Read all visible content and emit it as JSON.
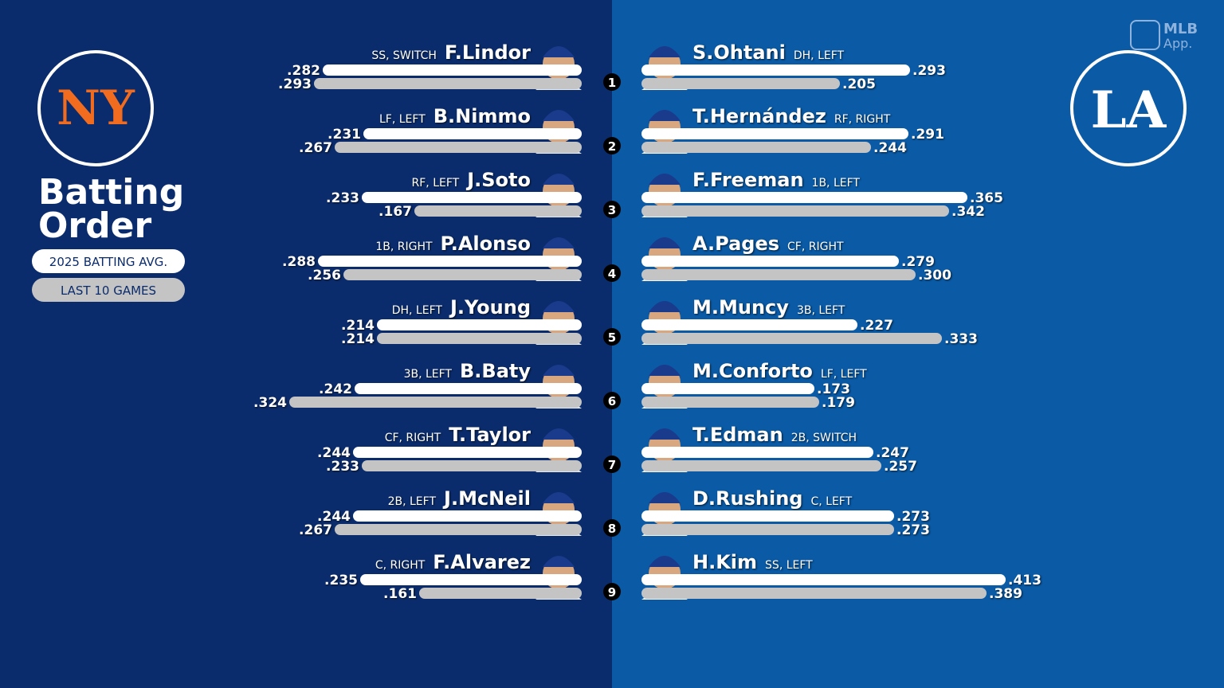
{
  "header": {
    "title_lines": [
      "Batting",
      "Order"
    ],
    "brand": {
      "line1": "MLB",
      "line2": "App."
    }
  },
  "legend": [
    {
      "label": "2025 BATTING AVG."
    },
    {
      "label": "LAST 10 GAMES"
    }
  ],
  "batting_slots": [
    1,
    2,
    3,
    4,
    5,
    6,
    7,
    8,
    9
  ],
  "teams": [
    {
      "logo": "NY",
      "players": [
        {
          "name": "F.Lindor",
          "pos": "SS, SWITCH",
          "avg": 0.282,
          "avg_label": ".282",
          "last10": 0.293,
          "last10_label": ".293"
        },
        {
          "name": "B.Nimmo",
          "pos": "LF, LEFT",
          "avg": 0.231,
          "avg_label": ".231",
          "last10": 0.267,
          "last10_label": ".267"
        },
        {
          "name": "J.Soto",
          "pos": "RF, LEFT",
          "avg": 0.233,
          "avg_label": ".233",
          "last10": 0.167,
          "last10_label": ".167"
        },
        {
          "name": "P.Alonso",
          "pos": "1B, RIGHT",
          "avg": 0.288,
          "avg_label": ".288",
          "last10": 0.256,
          "last10_label": ".256"
        },
        {
          "name": "J.Young",
          "pos": "DH, LEFT",
          "avg": 0.214,
          "avg_label": ".214",
          "last10": 0.214,
          "last10_label": ".214"
        },
        {
          "name": "B.Baty",
          "pos": "3B, LEFT",
          "avg": 0.242,
          "avg_label": ".242",
          "last10": 0.324,
          "last10_label": ".324"
        },
        {
          "name": "T.Taylor",
          "pos": "CF, RIGHT",
          "avg": 0.244,
          "avg_label": ".244",
          "last10": 0.233,
          "last10_label": ".233"
        },
        {
          "name": "J.McNeil",
          "pos": "2B, LEFT",
          "avg": 0.244,
          "avg_label": ".244",
          "last10": 0.267,
          "last10_label": ".267"
        },
        {
          "name": "F.Alvarez",
          "pos": "C, RIGHT",
          "avg": 0.235,
          "avg_label": ".235",
          "last10": 0.161,
          "last10_label": ".161"
        }
      ]
    },
    {
      "logo": "LA",
      "players": [
        {
          "name": "S.Ohtani",
          "pos": "DH, LEFT",
          "avg": 0.293,
          "avg_label": ".293",
          "last10": 0.205,
          "last10_label": ".205"
        },
        {
          "name": "T.Hernández",
          "pos": "RF, RIGHT",
          "avg": 0.291,
          "avg_label": ".291",
          "last10": 0.244,
          "last10_label": ".244"
        },
        {
          "name": "F.Freeman",
          "pos": "1B, LEFT",
          "avg": 0.365,
          "avg_label": ".365",
          "last10": 0.342,
          "last10_label": ".342"
        },
        {
          "name": "A.Pages",
          "pos": "CF, RIGHT",
          "avg": 0.279,
          "avg_label": ".279",
          "last10": 0.3,
          "last10_label": ".300"
        },
        {
          "name": "M.Muncy",
          "pos": "3B, LEFT",
          "avg": 0.227,
          "avg_label": ".227",
          "last10": 0.333,
          "last10_label": ".333"
        },
        {
          "name": "M.Conforto",
          "pos": "LF, LEFT",
          "avg": 0.173,
          "avg_label": ".173",
          "last10": 0.179,
          "last10_label": ".179"
        },
        {
          "name": "T.Edman",
          "pos": "2B, SWITCH",
          "avg": 0.247,
          "avg_label": ".247",
          "last10": 0.257,
          "last10_label": ".257"
        },
        {
          "name": "D.Rushing",
          "pos": "C, LEFT",
          "avg": 0.273,
          "avg_label": ".273",
          "last10": 0.273,
          "last10_label": ".273"
        },
        {
          "name": "H.Kim",
          "pos": "SS, LEFT",
          "avg": 0.413,
          "avg_label": ".413",
          "last10": 0.389,
          "last10_label": ".389"
        }
      ]
    }
  ]
}
